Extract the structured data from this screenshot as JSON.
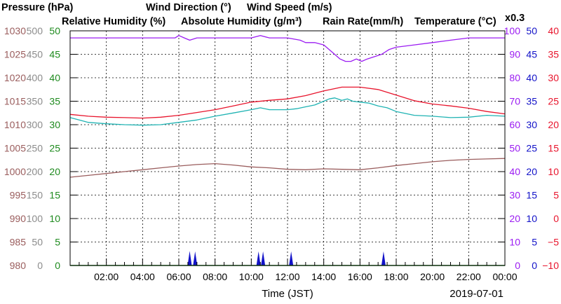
{
  "chart_data": {
    "type": "line",
    "legend": {
      "row1": [
        {
          "key": "pressure",
          "label": "Pressure (hPa)",
          "color": "#9a5d5d"
        },
        {
          "key": "wind_dir",
          "label": "Wind Direction (°)",
          "color": "#8c8c8c"
        },
        {
          "key": "wind_speed",
          "label": "Wind Speed (m/s)",
          "color": "#1e8a1e"
        }
      ],
      "row2": [
        {
          "key": "rh",
          "label": "Relative Humidity (%)",
          "color": "#9b1cf2"
        },
        {
          "key": "ah",
          "label": "Absolute Humidity (g/m³)",
          "color": "#1fb3b3"
        },
        {
          "key": "rain",
          "label": "Rain Rate(mm/h)",
          "color": "#1212c8"
        },
        {
          "key": "temp",
          "label": "Temperature (°C)",
          "color": "#e8142c"
        }
      ],
      "ah_factor": "x0.3"
    },
    "xlabel": "Time (JST)",
    "date": "2019-07-01",
    "x_ticks": [
      "02:00",
      "04:00",
      "06:00",
      "08:00",
      "10:00",
      "12:00",
      "14:00",
      "16:00",
      "18:00",
      "20:00",
      "22:00",
      "00:00"
    ],
    "x_range_hours": [
      0,
      24
    ],
    "grid": true,
    "axes": {
      "pressure": {
        "ticks": [
          "980",
          "985",
          "990",
          "995",
          "1000",
          "1005",
          "1010",
          "1015",
          "1020",
          "1025",
          "1030"
        ],
        "range": [
          980,
          1030
        ],
        "color": "#9a5d5d"
      },
      "wind_dir": {
        "ticks": [
          "0",
          "50",
          "100",
          "150",
          "200",
          "250",
          "300",
          "350",
          "400",
          "450",
          "500"
        ],
        "range": [
          0,
          500
        ],
        "color": "#8c8c8c"
      },
      "wind_speed": {
        "ticks": [
          "0",
          "5",
          "10",
          "15",
          "20",
          "25",
          "30",
          "35",
          "40",
          "45",
          "50"
        ],
        "range": [
          0,
          50
        ],
        "color": "#1e8a1e"
      },
      "rh": {
        "ticks": [
          "0",
          "10",
          "20",
          "30",
          "40",
          "50",
          "60",
          "70",
          "80",
          "90",
          "100"
        ],
        "range": [
          0,
          100
        ],
        "color": "#9b1cf2"
      },
      "rain": {
        "ticks": [
          "0",
          "5",
          "10",
          "15",
          "20",
          "25",
          "30",
          "35",
          "40",
          "45",
          "50"
        ],
        "range": [
          0,
          50
        ],
        "color": "#1212c8"
      },
      "temp": {
        "ticks": [
          "−10",
          "−5",
          "0",
          "5",
          "10",
          "15",
          "20",
          "25",
          "30",
          "35",
          "40"
        ],
        "range": [
          -10,
          40
        ],
        "color": "#e8142c"
      }
    },
    "series": [
      {
        "key": "rh",
        "name": "Relative Humidity (%)",
        "axis": "rh",
        "color": "#9b1cf2",
        "x": [
          0,
          1,
          2,
          3,
          4,
          5,
          5.8,
          6,
          6.3,
          6.6,
          7,
          8,
          9,
          10,
          10.5,
          11,
          12,
          12.7,
          13,
          13.5,
          14,
          14.3,
          14.6,
          14.9,
          15.2,
          15.5,
          15.8,
          16.1,
          16.4,
          16.8,
          17.2,
          17.6,
          18,
          19,
          20,
          21,
          22,
          23,
          24
        ],
        "y": [
          97,
          97,
          97,
          97,
          97,
          97,
          97,
          98,
          97,
          96,
          97,
          97,
          97,
          97,
          98,
          97,
          97,
          96,
          95,
          95,
          94,
          92,
          90,
          88,
          87,
          87,
          88,
          87,
          88,
          89,
          90,
          92,
          93,
          94,
          95,
          96,
          97,
          97,
          97
        ]
      },
      {
        "key": "ah",
        "name": "Absolute Humidity (g/m³)",
        "axis": "wind_dir",
        "color": "#1fb3b3",
        "x": [
          0,
          0.5,
          1,
          2,
          3,
          4,
          5,
          6,
          7,
          8,
          9,
          10,
          10.5,
          11,
          12,
          12.5,
          13,
          13.5,
          14,
          14.3,
          14.6,
          15,
          15.3,
          15.6,
          16,
          16.5,
          17,
          17.5,
          18,
          19,
          20,
          21,
          22,
          23,
          24
        ],
        "y": [
          315,
          310,
          305,
          302,
          300,
          299,
          300,
          305,
          310,
          318,
          325,
          332,
          336,
          332,
          332,
          334,
          338,
          342,
          350,
          355,
          357,
          352,
          355,
          350,
          348,
          346,
          340,
          336,
          328,
          320,
          318,
          315,
          316,
          320,
          318
        ]
      },
      {
        "key": "temp",
        "name": "Temperature (°C)",
        "axis": "temp",
        "color": "#e8142c",
        "x": [
          0,
          1,
          2,
          3,
          4,
          5,
          6,
          7,
          8,
          9,
          10,
          11,
          12,
          13,
          14,
          15,
          16,
          17,
          18,
          19,
          20,
          21,
          22,
          23,
          24
        ],
        "y": [
          22.2,
          21.8,
          21.6,
          21.5,
          21.4,
          21.6,
          22.0,
          22.6,
          23.2,
          24.0,
          24.8,
          25.2,
          25.5,
          26.2,
          27.2,
          28.0,
          28.0,
          27.5,
          26.3,
          25.1,
          24.4,
          24.0,
          23.5,
          22.8,
          22.3
        ]
      },
      {
        "key": "pressure",
        "name": "Pressure (hPa)",
        "axis": "pressure",
        "color": "#9a5d5d",
        "x": [
          0,
          1,
          2,
          3,
          4,
          5,
          6,
          7,
          8,
          9,
          10,
          11,
          12,
          13,
          14,
          15,
          16,
          17,
          18,
          19,
          20,
          21,
          22,
          23,
          24
        ],
        "y": [
          998.8,
          999.2,
          999.6,
          1000.0,
          1000.4,
          1000.8,
          1001.2,
          1001.5,
          1001.7,
          1001.4,
          1001.0,
          1000.8,
          1000.5,
          1000.4,
          1000.6,
          1000.5,
          1000.4,
          1000.8,
          1001.3,
          1001.7,
          1002.1,
          1002.4,
          1002.6,
          1002.7,
          1002.8
        ]
      },
      {
        "key": "rain",
        "name": "Rain Rate(mm/h)",
        "axis": "rain",
        "color": "#1212c8",
        "x": [
          6.6,
          6.9,
          10.4,
          10.65,
          12.2,
          17.3
        ],
        "y": [
          3.1,
          3.0,
          3.0,
          3.0,
          3.0,
          3.0
        ]
      }
    ]
  }
}
